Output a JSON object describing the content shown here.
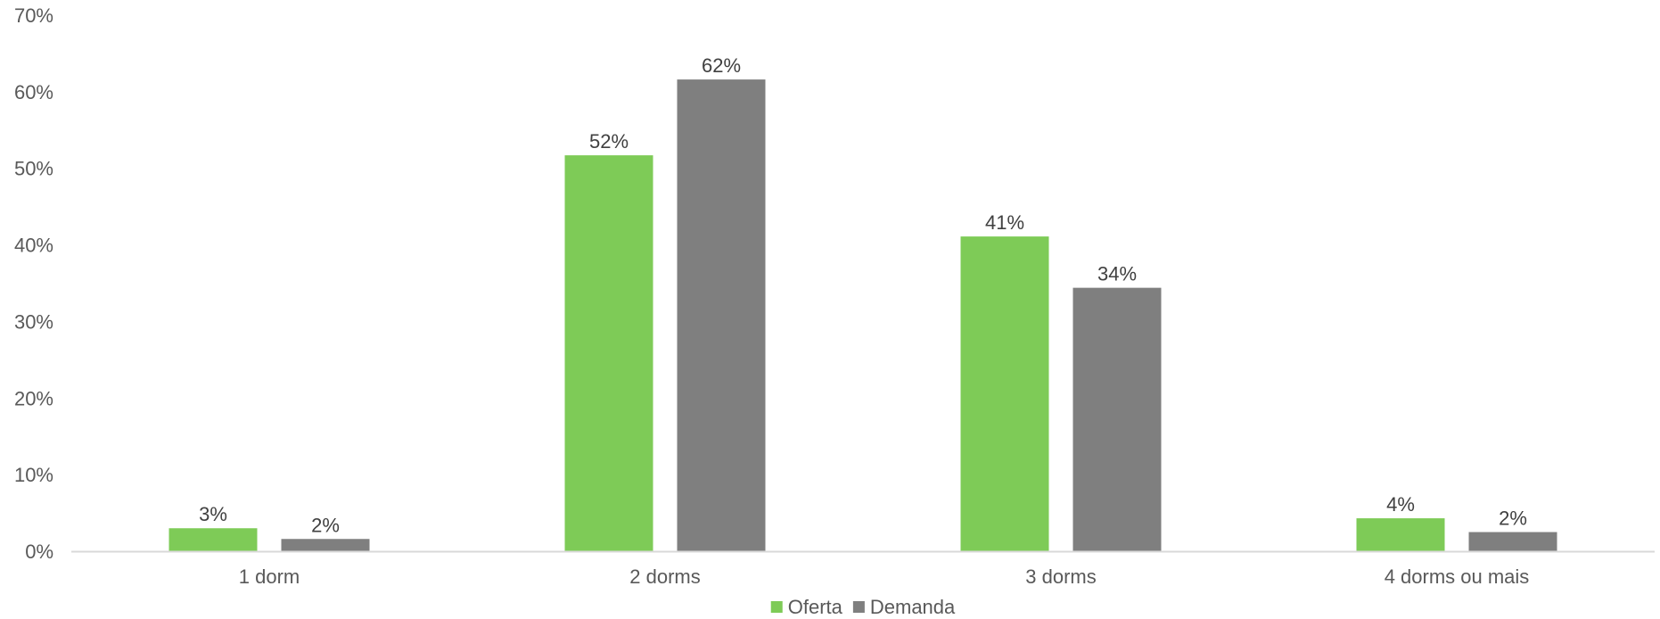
{
  "chart_data": {
    "type": "bar",
    "categories": [
      "1 dorm",
      "2 dorms",
      "3 dorms",
      "4 dorms ou mais"
    ],
    "series": [
      {
        "name": "Oferta",
        "color": "#7ecb57",
        "values": [
          3,
          51.7,
          41.1,
          4.3
        ],
        "labels": [
          "3%",
          "52%",
          "41%",
          "4%"
        ]
      },
      {
        "name": "Demanda",
        "color": "#7f7f7f",
        "values": [
          1.6,
          61.6,
          34.4,
          2.5
        ],
        "labels": [
          "2%",
          "62%",
          "34%",
          "2%"
        ]
      }
    ],
    "ylim": [
      0,
      70
    ],
    "yticks": [
      0,
      10,
      20,
      30,
      40,
      50,
      60,
      70
    ],
    "ytick_labels": [
      "0%",
      "10%",
      "20%",
      "30%",
      "40%",
      "50%",
      "60%",
      "70%"
    ],
    "axis_color": "#d9d9d9",
    "grid": false,
    "legend_position": "bottom",
    "title": "",
    "xlabel": "",
    "ylabel": ""
  }
}
